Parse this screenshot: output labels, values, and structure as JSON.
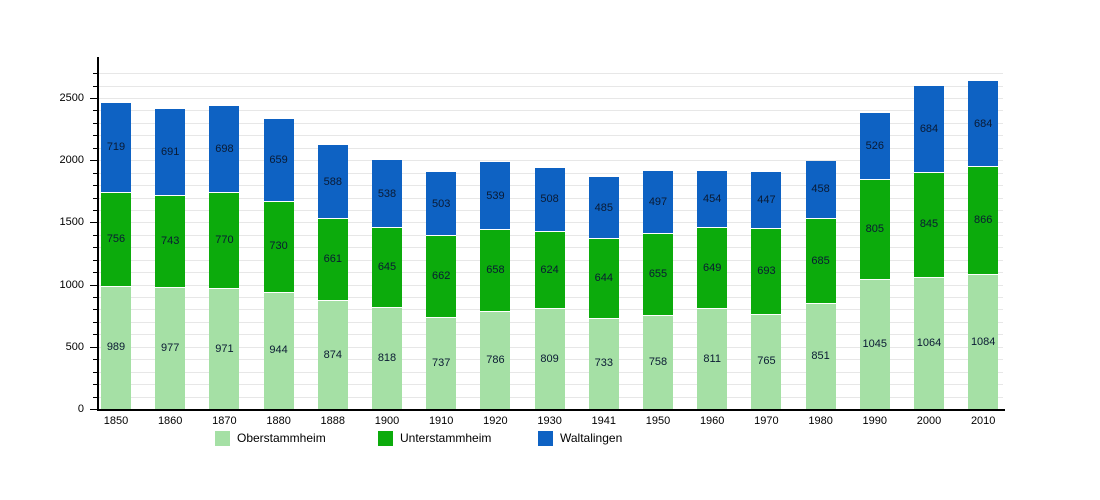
{
  "chart_data": {
    "type": "bar",
    "stacked": true,
    "title": "",
    "xlabel": "",
    "ylabel": "",
    "categories": [
      "1850",
      "1860",
      "1870",
      "1880",
      "1888",
      "1900",
      "1910",
      "1920",
      "1930",
      "1941",
      "1950",
      "1960",
      "1970",
      "1980",
      "1990",
      "2000",
      "2010"
    ],
    "series": [
      {
        "name": "Oberstammheim",
        "color": "#a5e0a5",
        "values": [
          989,
          977,
          971,
          944,
          874,
          818,
          737,
          786,
          809,
          733,
          758,
          811,
          765,
          851,
          1045,
          1064,
          1084
        ]
      },
      {
        "name": "Unterstammheim",
        "color": "#0cab0c",
        "values": [
          756,
          743,
          770,
          730,
          661,
          645,
          662,
          658,
          624,
          644,
          655,
          649,
          693,
          685,
          805,
          845,
          866
        ]
      },
      {
        "name": "Waltalingen",
        "color": "#0e62c3",
        "values": [
          719,
          691,
          698,
          659,
          588,
          538,
          503,
          539,
          508,
          485,
          497,
          454,
          447,
          458,
          526,
          684,
          684
        ]
      }
    ],
    "ylim": [
      0,
      2830
    ],
    "ytick_labels": [
      "0",
      "500",
      "1000",
      "1500",
      "2000",
      "2500"
    ],
    "ytick_step": 500,
    "grid_step": 100,
    "grid": true,
    "legend_position": "bottom"
  },
  "style": {
    "background": "#ffffff",
    "grid_color": "#e7e7e7",
    "axis_color": "#000000",
    "text_color": "#000000",
    "value_label_color": "#0a1a33",
    "segment_divider_color": "#ffffff"
  }
}
